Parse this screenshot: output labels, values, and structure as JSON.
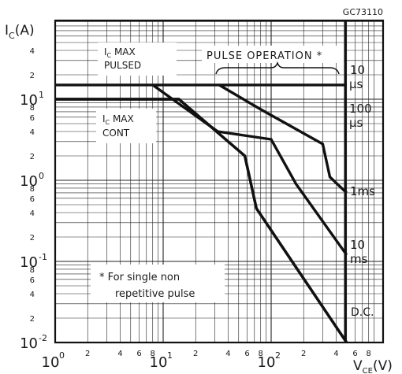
{
  "chart_data": {
    "type": "line",
    "code": "GC73110",
    "xaxis": {
      "label": "V",
      "label_sub": "CE",
      "unit": "(V)",
      "scale": "log",
      "range": [
        1,
        500
      ],
      "major_ticks": [
        {
          "base": "10",
          "exp": "0",
          "value": 1
        },
        {
          "base": "10",
          "exp": "1",
          "value": 10
        },
        {
          "base": "10",
          "exp": "2",
          "value": 100
        }
      ],
      "minor_ticks": [
        {
          "text": "2",
          "value": 2
        },
        {
          "text": "4",
          "value": 4
        },
        {
          "text": "6",
          "value": 6
        },
        {
          "text": "8",
          "value": 8
        },
        {
          "text": "2",
          "value": 20
        },
        {
          "text": "4",
          "value": 40
        },
        {
          "text": "6",
          "value": 60
        },
        {
          "text": "8",
          "value": 80
        },
        {
          "text": "2",
          "value": 200
        },
        {
          "text": "4",
          "value": 400
        },
        {
          "text": "6",
          "value": 600
        },
        {
          "text": "8",
          "value": 800
        }
      ]
    },
    "yaxis": {
      "label": "I",
      "label_sub": "C",
      "unit": "(A)",
      "scale": "log",
      "range": [
        0.01,
        100
      ],
      "major_ticks": [
        {
          "base": "10",
          "exp": "1",
          "value": 10
        },
        {
          "base": "10",
          "exp": "0",
          "value": 1
        },
        {
          "base": "10",
          "exp": "-1",
          "value": 0.1
        },
        {
          "base": "10",
          "exp": "-2",
          "value": 0.01
        }
      ],
      "minor_ticks": [
        {
          "text": "4",
          "value": 40
        },
        {
          "text": "2",
          "value": 20
        },
        {
          "text": "8",
          "value": 8
        },
        {
          "text": "6",
          "value": 6
        },
        {
          "text": "4",
          "value": 4
        },
        {
          "text": "2",
          "value": 2
        },
        {
          "text": "8",
          "value": 0.8
        },
        {
          "text": "6",
          "value": 0.6
        },
        {
          "text": "4",
          "value": 0.4
        },
        {
          "text": "2",
          "value": 0.2
        },
        {
          "text": "8",
          "value": 0.08
        },
        {
          "text": "6",
          "value": 0.06
        },
        {
          "text": "4",
          "value": 0.04
        },
        {
          "text": "2",
          "value": 0.02
        }
      ]
    },
    "grid": true,
    "series": [
      {
        "name": "10 μs",
        "points": [
          [
            1,
            15
          ],
          [
            500,
            15
          ]
        ]
      },
      {
        "name": "100 μs",
        "points": [
          [
            33,
            15
          ],
          [
            80,
            7.5
          ],
          [
            300,
            2.8
          ],
          [
            350,
            1.1
          ],
          [
            500,
            0.7
          ]
        ]
      },
      {
        "name": "1ms",
        "points": [
          [
            8,
            15
          ],
          [
            32,
            4
          ],
          [
            100,
            3.2
          ],
          [
            170,
            0.9
          ],
          [
            500,
            0.12
          ]
        ]
      },
      {
        "name": "10 ms",
        "points": [
          [
            1,
            10
          ],
          [
            14,
            10
          ],
          [
            57,
            2.0
          ],
          [
            73,
            0.45
          ],
          [
            500,
            0.01
          ]
        ]
      },
      {
        "name": "D.C.",
        "points": [
          [
            1,
            10
          ],
          [
            14,
            10
          ],
          [
            57,
            2.0
          ],
          [
            73,
            0.45
          ],
          [
            500,
            0.01
          ]
        ]
      }
    ],
    "annotations": {
      "ic_max_pulsed": {
        "sym": "I",
        "sub": "C",
        "rest": " MAX",
        "line2": "PULSED"
      },
      "ic_max_cont": {
        "sym": "I",
        "sub": "C",
        "rest": " MAX",
        "line2": "CONT"
      },
      "pulse_operation": "PULSE OPERATION *",
      "footnote_line1": "* For single non",
      "footnote_line2": "repetitive pulse",
      "curve_labels": {
        "l10us_a": "10",
        "l10us_b": "μs",
        "l100us_a": "100",
        "l100us_b": "μs",
        "l1ms": "1ms",
        "l10ms_a": "10",
        "l10ms_b": "ms",
        "ldc": "D.C."
      }
    }
  }
}
